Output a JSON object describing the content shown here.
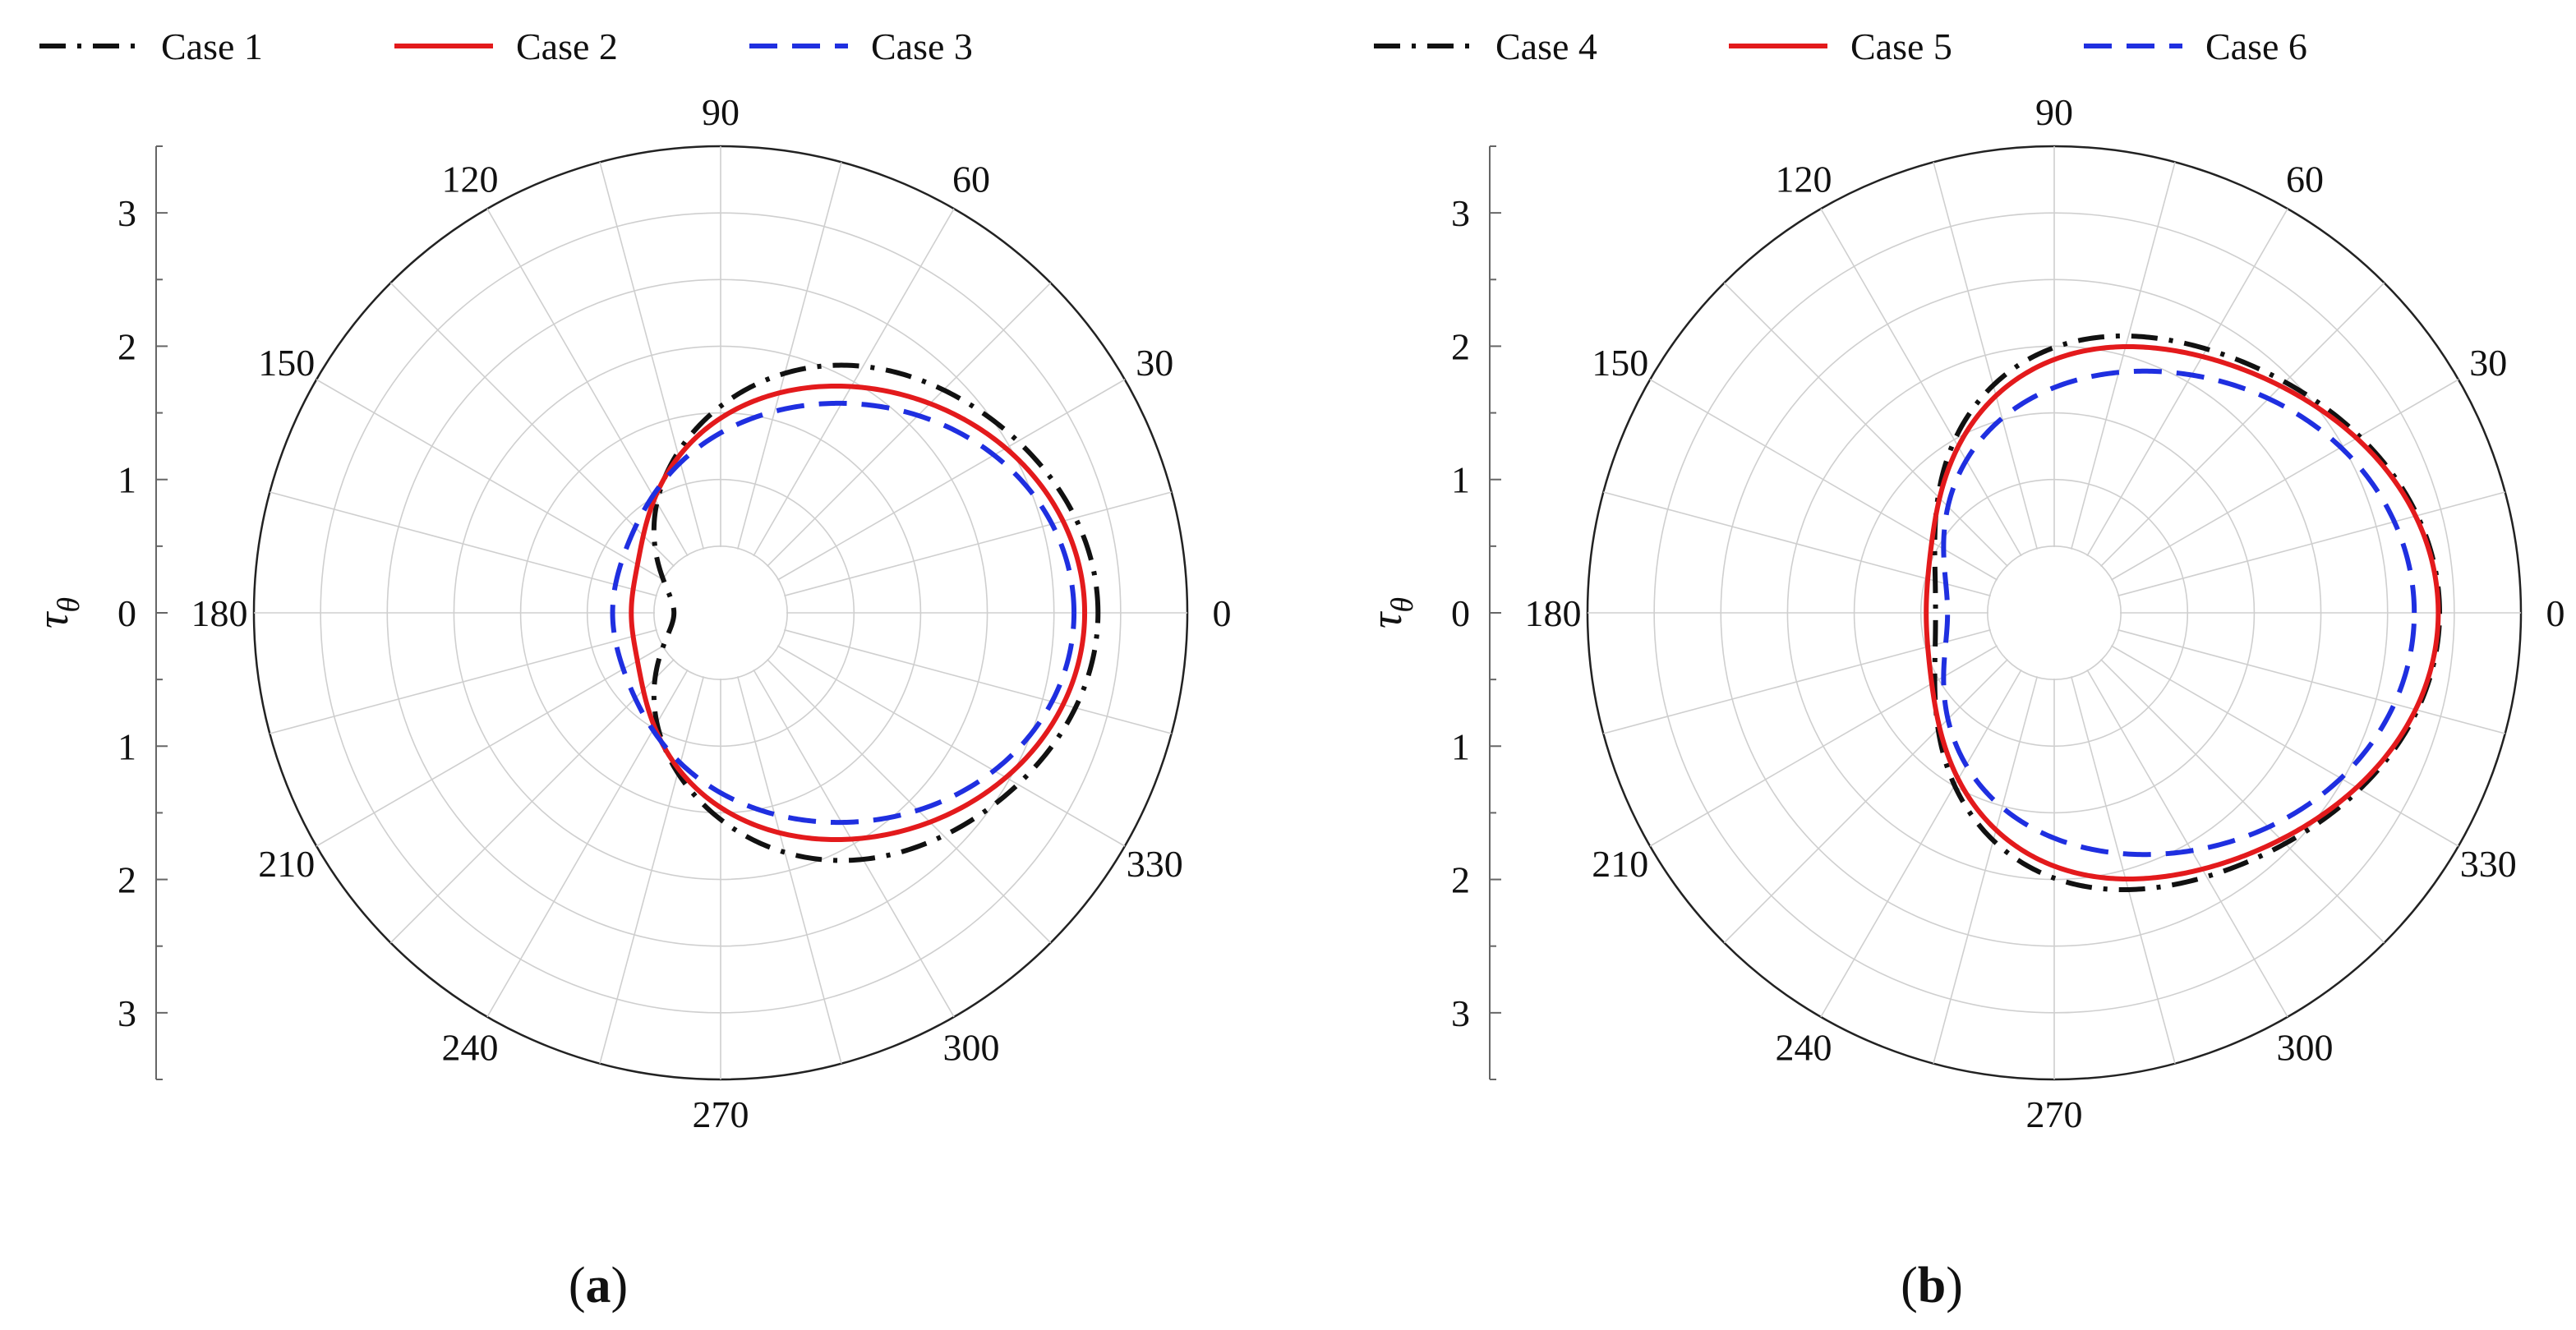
{
  "chart_data": [
    {
      "type": "polar-line",
      "panel_label": {
        "open": "(",
        "letter": "a",
        "close": ")"
      },
      "ylabel": "τ",
      "ylabel_subscript": "θ",
      "r_range": [
        0,
        3.5
      ],
      "r_ticks": [
        0,
        1,
        2,
        3
      ],
      "angle_ticks": [
        "0",
        "30",
        "60",
        "90",
        "120",
        "150",
        "180",
        "210",
        "240",
        "270",
        "300",
        "330"
      ],
      "grid": true,
      "legend_position": "top-left",
      "series": [
        {
          "name": "Case 1",
          "color": "#111111",
          "dash": "dashdot",
          "coef": [
            1.55,
            1.21,
            0.01,
            0.02,
            0.02,
            0.01,
            0.01
          ]
        },
        {
          "name": "Case 2",
          "color": "#e31a1c",
          "dash": "solid",
          "coef": [
            1.55,
            1.01,
            0.12,
            0.02,
            0.03,
            0.0,
            0.0
          ]
        },
        {
          "name": "Case 3",
          "color": "#1f2fe0",
          "dash": "dashed",
          "coef": [
            1.52,
            0.88,
            0.19,
            0.04,
            0.02,
            0.0,
            0.0
          ]
        }
      ]
    },
    {
      "type": "polar-line",
      "panel_label": {
        "open": "(",
        "letter": "b",
        "close": ")"
      },
      "ylabel": "τ",
      "ylabel_subscript": "θ",
      "r_range": [
        0,
        3.5
      ],
      "r_ticks": [
        0,
        1,
        2,
        3
      ],
      "angle_ticks": [
        "0",
        "30",
        "60",
        "90",
        "120",
        "150",
        "180",
        "210",
        "240",
        "270",
        "300",
        "330"
      ],
      "grid": true,
      "legend_position": "top-left",
      "series": [
        {
          "name": "Case 4",
          "color": "#111111",
          "dash": "dashdot",
          "coef": [
            1.89,
            0.93,
            -0.05,
            0.07,
            0.05,
            0.0,
            0.0
          ]
        },
        {
          "name": "Case 5",
          "color": "#e31a1c",
          "dash": "solid",
          "coef": [
            1.86,
            0.9,
            0.01,
            0.06,
            0.05,
            0.0,
            0.0
          ]
        },
        {
          "name": "Case 6",
          "color": "#1f2fe0",
          "dash": "dashed",
          "coef": [
            1.71,
            0.88,
            0.03,
            0.07,
            0.01,
            0.0,
            0.0
          ]
        }
      ]
    }
  ]
}
